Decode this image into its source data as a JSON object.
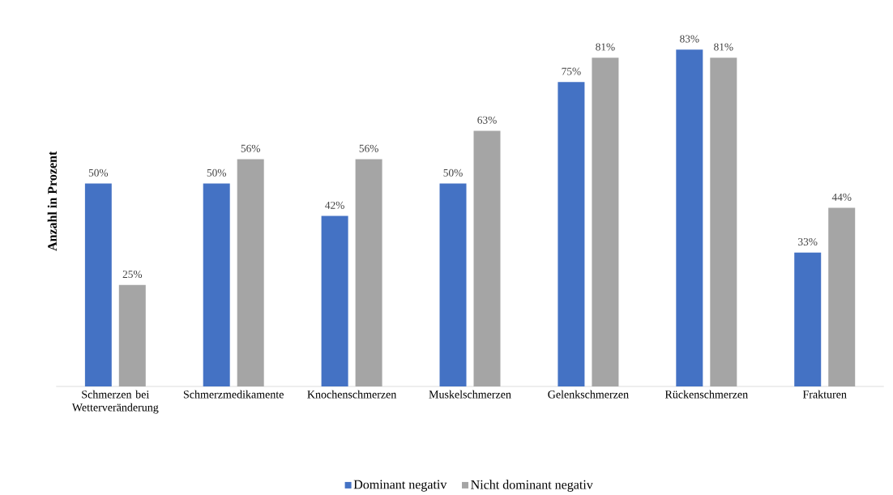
{
  "chart_data": {
    "type": "bar",
    "ylabel": "Anzahl in Prozent",
    "categories": [
      "Schmerzen bei Wetterveränderung",
      "Schmerzmedikamente",
      "Knochenschmerzen",
      "Muskelschmerzen",
      "Gelenkschmerzen",
      "Rückenschmerzen",
      "Frakturen"
    ],
    "series": [
      {
        "name": "Dominant negativ",
        "color": "#4472c4",
        "values": [
          50,
          50,
          42,
          50,
          75,
          83,
          33
        ],
        "value_labels": [
          "50%",
          "50%",
          "42%",
          "50%",
          "75%",
          "83%",
          "33%"
        ]
      },
      {
        "name": "Nicht dominant negativ",
        "color": "#a5a5a5",
        "values": [
          25,
          56,
          56,
          63,
          81,
          81,
          44
        ],
        "value_labels": [
          "25%",
          "56%",
          "56%",
          "63%",
          "81%",
          "81%",
          "44%"
        ]
      }
    ],
    "legend": "bottom"
  }
}
